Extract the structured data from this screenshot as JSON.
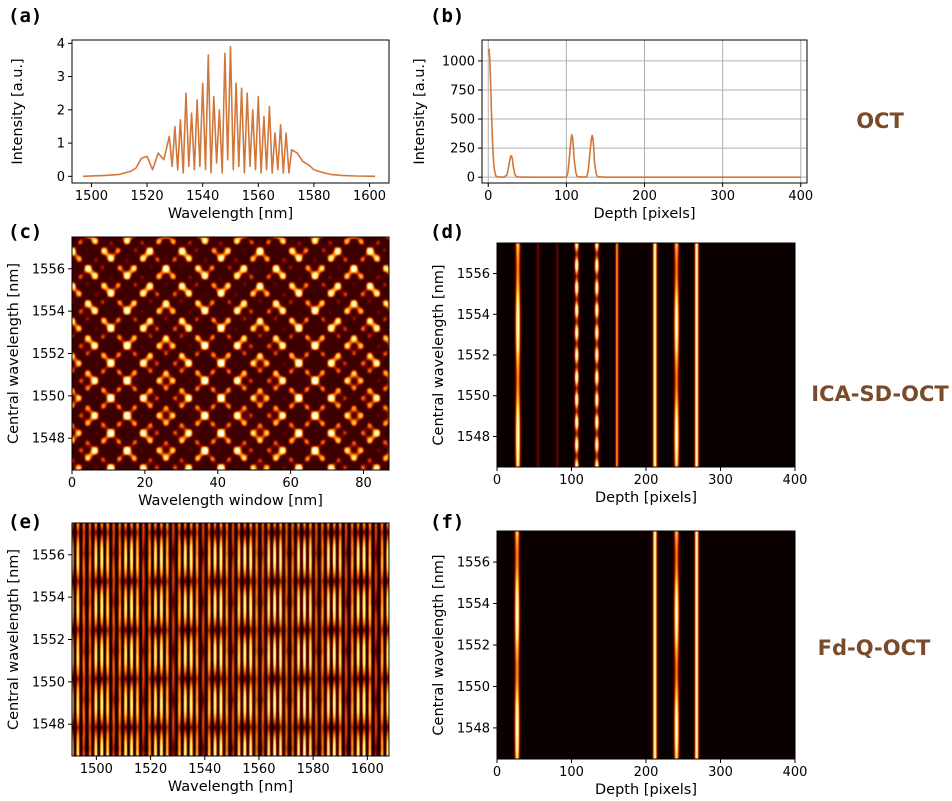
{
  "colors": {
    "line": "#d2773a",
    "grid": "#b0b0b0",
    "method_label": "#7a4b2a",
    "heatmap_colormap": "afmhot"
  },
  "methods": {
    "oct": "OCT",
    "ica": "ICA-SD-OCT",
    "fdq": "Fd-Q-OCT"
  },
  "chart_data": [
    {
      "id": "a",
      "panel_label": "(a)",
      "type": "line",
      "xlabel": "Wavelength [nm]",
      "ylabel": "Intensity [a.u.]",
      "xlim": [
        1493,
        1607
      ],
      "ylim": [
        -0.2,
        4.1
      ],
      "xticks": [
        1500,
        1520,
        1540,
        1560,
        1580,
        1600
      ],
      "yticks": [
        0,
        1,
        2,
        3,
        4
      ],
      "grid": false,
      "series": [
        {
          "x": [
            1497,
            1505,
            1510,
            1514,
            1516,
            1518,
            1520,
            1522,
            1524,
            1526,
            1528,
            1529,
            1530,
            1531,
            1532,
            1533,
            1534,
            1535,
            1536,
            1537,
            1538,
            1539,
            1540,
            1541,
            1542,
            1543,
            1544,
            1545,
            1546,
            1547,
            1548,
            1549,
            1550,
            1551,
            1552,
            1553,
            1554,
            1555,
            1556,
            1557,
            1558,
            1559,
            1560,
            1561,
            1562,
            1563,
            1564,
            1565,
            1566,
            1567,
            1568,
            1569,
            1570,
            1571,
            1572,
            1574,
            1576,
            1578,
            1580,
            1583,
            1586,
            1590,
            1595,
            1602
          ],
          "y": [
            0,
            0.03,
            0.06,
            0.15,
            0.25,
            0.55,
            0.6,
            0.2,
            0.7,
            0.5,
            1.2,
            0.3,
            1.5,
            0.2,
            1.7,
            0.1,
            2.5,
            0.3,
            1.9,
            0.2,
            2.3,
            0.3,
            2.8,
            0.2,
            3.65,
            0.1,
            2.4,
            0.4,
            2.0,
            0.1,
            3.7,
            0.5,
            3.9,
            0.2,
            2.8,
            0.3,
            2.65,
            0.1,
            2.5,
            0.3,
            2.0,
            0.2,
            2.4,
            0.1,
            1.8,
            0.2,
            2.1,
            0.1,
            1.3,
            0.2,
            1.55,
            0.1,
            1.3,
            0.1,
            0.8,
            0.7,
            0.45,
            0.35,
            0.2,
            0.12,
            0.06,
            0.03,
            0.01,
            0
          ]
        }
      ]
    },
    {
      "id": "b",
      "panel_label": "(b)",
      "type": "line",
      "xlabel": "Depth [pixels]",
      "ylabel": "Intensity [a.u.]",
      "xlim": [
        -8,
        408
      ],
      "ylim": [
        -50,
        1180
      ],
      "xticks": [
        0,
        100,
        200,
        300,
        400
      ],
      "yticks": [
        0,
        250,
        500,
        750,
        1000
      ],
      "grid": true,
      "series": [
        {
          "x": [
            0,
            1,
            2,
            3,
            4,
            5,
            6,
            7,
            8,
            9,
            10,
            12,
            14,
            20,
            24,
            26,
            28,
            29,
            30,
            31,
            32,
            34,
            36,
            40,
            60,
            80,
            100,
            102,
            104,
            106,
            107,
            108,
            109,
            110,
            112,
            114,
            120,
            126,
            128,
            130,
            132,
            133,
            134,
            135,
            136,
            138,
            140,
            150,
            200,
            300,
            400
          ],
          "y": [
            1080,
            1100,
            1020,
            820,
            580,
            380,
            230,
            120,
            60,
            25,
            8,
            3,
            1,
            1,
            20,
            90,
            160,
            185,
            180,
            150,
            90,
            25,
            6,
            1,
            0,
            0,
            1,
            40,
            180,
            330,
            365,
            340,
            260,
            150,
            40,
            5,
            1,
            3,
            60,
            200,
            330,
            360,
            340,
            260,
            130,
            30,
            4,
            0,
            0,
            0,
            0
          ]
        }
      ]
    },
    {
      "id": "c",
      "panel_label": "(c)",
      "type": "heatmap",
      "xlabel": "Wavelength window [nm]",
      "ylabel": "Central wavelength [nm]",
      "xlim": [
        0,
        87
      ],
      "ylim": [
        1546.5,
        1557.5
      ],
      "xticks": [
        0,
        20,
        40,
        60,
        80
      ],
      "yticks": [
        1548,
        1550,
        1552,
        1554,
        1556
      ]
    },
    {
      "id": "d",
      "panel_label": "(d)",
      "type": "heatmap",
      "xlabel": "Depth [pixels]",
      "ylabel": "Central wavelength [nm]",
      "xlim": [
        0,
        400
      ],
      "ylim": [
        1546.5,
        1557.5
      ],
      "xticks": [
        0,
        100,
        200,
        300,
        400
      ],
      "yticks": [
        1548,
        1550,
        1552,
        1554,
        1556
      ],
      "features": [
        {
          "depth": 28,
          "width": 3,
          "intensity": 0.95,
          "fine": 0,
          "beat": 5.5
        },
        {
          "depth": 55,
          "width": 1.5,
          "intensity": 0.25,
          "fine": 0,
          "beat": 0
        },
        {
          "depth": 81,
          "width": 1.5,
          "intensity": 0.2,
          "fine": 0,
          "beat": 0
        },
        {
          "depth": 107,
          "width": 2.5,
          "intensity": 1.0,
          "fine": 1.1,
          "beat": 0
        },
        {
          "depth": 134,
          "width": 2.5,
          "intensity": 1.0,
          "fine": 1.1,
          "beat": 0
        },
        {
          "depth": 161,
          "width": 2,
          "intensity": 0.55,
          "fine": 0,
          "beat": 0
        },
        {
          "depth": 212,
          "width": 2.5,
          "intensity": 0.85,
          "fine": 0,
          "beat": 0
        },
        {
          "depth": 241,
          "width": 3,
          "intensity": 0.9,
          "fine": 0,
          "beat": 5.5
        },
        {
          "depth": 268,
          "width": 2.5,
          "intensity": 0.85,
          "fine": 0,
          "beat": 0
        }
      ]
    },
    {
      "id": "e",
      "panel_label": "(e)",
      "type": "heatmap",
      "xlabel": "Wavelength [nm]",
      "ylabel": "Central wavelength [nm]",
      "xlim": [
        1491,
        1608
      ],
      "ylim": [
        1546.5,
        1557.5
      ],
      "xticks": [
        1500,
        1520,
        1540,
        1560,
        1580,
        1600
      ],
      "yticks": [
        1548,
        1550,
        1552,
        1554,
        1556
      ]
    },
    {
      "id": "f",
      "panel_label": "(f)",
      "type": "heatmap",
      "xlabel": "Depth [pixels]",
      "ylabel": "Central wavelength [nm]",
      "xlim": [
        0,
        400
      ],
      "ylim": [
        1546.5,
        1557.5
      ],
      "xticks": [
        0,
        100,
        200,
        300,
        400
      ],
      "yticks": [
        1548,
        1550,
        1552,
        1554,
        1556
      ],
      "features": [
        {
          "depth": 27,
          "width": 3,
          "intensity": 0.95,
          "fine": 0,
          "beat": 5.5
        },
        {
          "depth": 212,
          "width": 2.5,
          "intensity": 0.85,
          "fine": 0,
          "beat": 0
        },
        {
          "depth": 241,
          "width": 3,
          "intensity": 0.9,
          "fine": 0,
          "beat": 5.5
        },
        {
          "depth": 268,
          "width": 2.5,
          "intensity": 0.85,
          "fine": 0,
          "beat": 0
        }
      ]
    }
  ]
}
